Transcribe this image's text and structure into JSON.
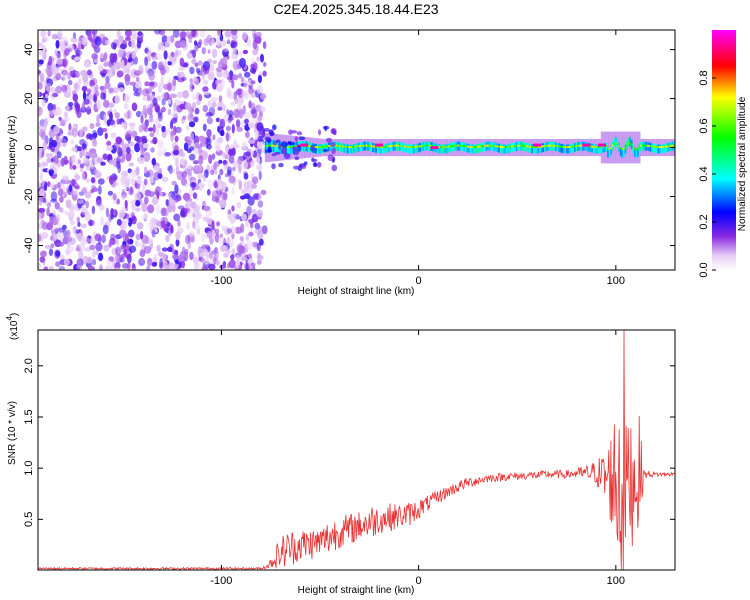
{
  "title": "C2E4.2025.345.18.44.E23",
  "colors": {
    "snr_line": "#e83030",
    "axis": "#000000",
    "colormap": [
      "#ffffff",
      "#8a2be2",
      "#0000ff",
      "#00ffff",
      "#00ff00",
      "#ffff00",
      "#ff0000",
      "#ff00ff"
    ]
  },
  "chart_data": [
    {
      "type": "heatmap",
      "name": "spectrogram",
      "xlabel": "Height of straight line (km)",
      "ylabel": "Frequency (Hz)",
      "xlim": [
        -193,
        130
      ],
      "ylim": [
        -50,
        48
      ],
      "x_ticks": [
        -100,
        0,
        100
      ],
      "y_ticks": [
        -40,
        -20,
        0,
        20,
        40
      ],
      "noise_region_x": [
        -193,
        -78
      ],
      "onset_x": -78,
      "ridge_frequency_hz": 0,
      "ridge_bright_points": [
        {
          "x": -58,
          "y": 1,
          "v": 0.95
        },
        {
          "x": -20,
          "y": 1,
          "v": 0.95
        },
        {
          "x": 8,
          "y": 0,
          "v": 0.95
        },
        {
          "x": 60,
          "y": 1,
          "v": 0.95
        },
        {
          "x": 85,
          "y": 1,
          "v": 0.95
        },
        {
          "x": 93,
          "y": 1,
          "v": 0.95
        }
      ],
      "colorbar": {
        "label": "Normalized spectral amplitude",
        "range": [
          0,
          1
        ],
        "ticks": [
          0.0,
          0.2,
          0.4,
          0.6,
          0.8
        ]
      }
    },
    {
      "type": "line",
      "name": "snr",
      "xlabel": "Height of straight line (km)",
      "ylabel": "SNR (10 * v/v)",
      "y_scale_label": "(x10",
      "y_scale_exponent": "4",
      "xlim": [
        -193,
        130
      ],
      "ylim": [
        0.005,
        2.35
      ],
      "x_ticks": [
        -100,
        0,
        100
      ],
      "y_ticks": [
        0.5,
        1.0,
        1.5,
        2.0
      ],
      "series": [
        {
          "name": "SNR",
          "x": [
            -193,
            -150,
            -100,
            -80,
            -76,
            -72,
            -68,
            -65,
            -60,
            -55,
            -50,
            -45,
            -40,
            -35,
            -30,
            -25,
            -20,
            -15,
            -10,
            -5,
            0,
            5,
            10,
            15,
            20,
            25,
            30,
            35,
            40,
            45,
            50,
            55,
            60,
            65,
            70,
            75,
            80,
            85,
            90,
            95,
            98,
            100,
            102,
            104,
            106,
            108,
            110,
            112,
            114,
            118,
            124,
            130
          ],
          "y": [
            0.02,
            0.02,
            0.02,
            0.02,
            0.05,
            0.14,
            0.2,
            0.22,
            0.25,
            0.26,
            0.28,
            0.33,
            0.38,
            0.4,
            0.44,
            0.47,
            0.5,
            0.52,
            0.53,
            0.55,
            0.6,
            0.66,
            0.72,
            0.77,
            0.82,
            0.86,
            0.88,
            0.9,
            0.91,
            0.92,
            0.92,
            0.93,
            0.93,
            0.94,
            0.94,
            0.94,
            0.95,
            0.95,
            0.96,
            0.9,
            0.9,
            0.9,
            0.9,
            0.9,
            0.9,
            0.9,
            0.9,
            0.92,
            0.94,
            0.94,
            0.94,
            0.94
          ],
          "noise_amplitude": [
            0.01,
            0.01,
            0.01,
            0.01,
            0.03,
            0.12,
            0.18,
            0.18,
            0.16,
            0.16,
            0.14,
            0.18,
            0.16,
            0.16,
            0.14,
            0.18,
            0.14,
            0.14,
            0.12,
            0.12,
            0.1,
            0.08,
            0.07,
            0.06,
            0.06,
            0.05,
            0.05,
            0.04,
            0.04,
            0.04,
            0.04,
            0.04,
            0.04,
            0.04,
            0.04,
            0.04,
            0.05,
            0.08,
            0.12,
            0.3,
            0.5,
            0.8,
            1.3,
            1.4,
            0.5,
            0.7,
            0.5,
            0.6,
            0.05,
            0.03,
            0.02,
            0.02
          ],
          "peak_value": 2.35,
          "peak_x": 104
        }
      ]
    }
  ]
}
